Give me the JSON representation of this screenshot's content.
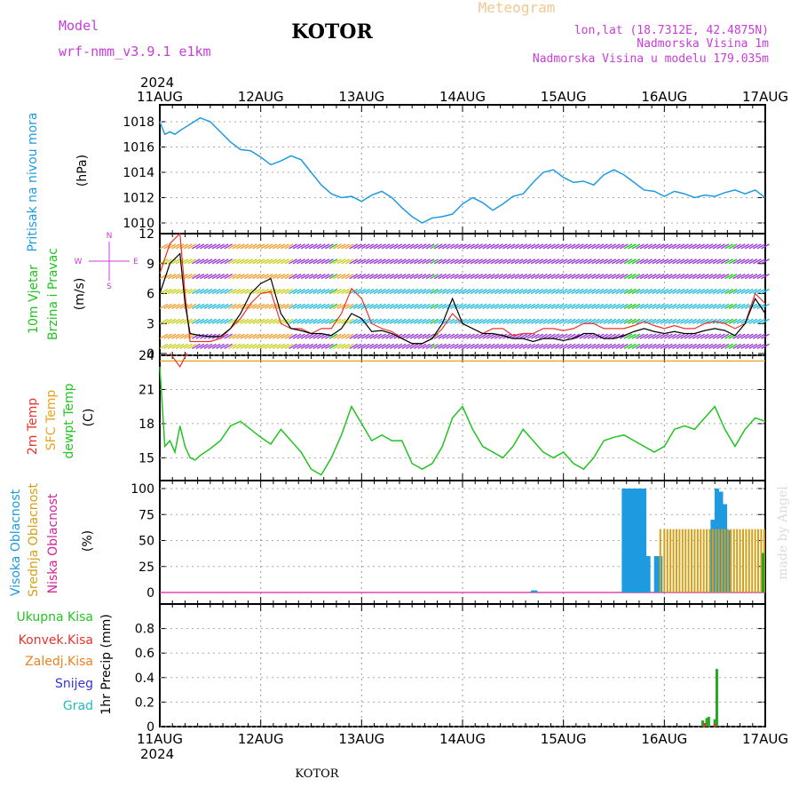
{
  "header": {
    "model_label": "Model",
    "model_name": "wrf-nmm_v3.9.1  e1km",
    "station": "KOTOR",
    "meteogram_label": "Meteogram",
    "lonlat": "lon,lat (18.7312E, 42.4875N)",
    "altitude": "Nadmorska Visina 1m",
    "model_altitude": "Nadmorska Visina u modelu 179.035m"
  },
  "footer": {
    "station": "KOTOR",
    "credit": "made by Angel"
  },
  "time_axis": {
    "year": "2024",
    "ticks": [
      "11AUG",
      "12AUG",
      "13AUG",
      "14AUG",
      "15AUG",
      "16AUG",
      "17AUG"
    ]
  },
  "colors": {
    "pressure": "#1e9be0",
    "wind_speed": "#000000",
    "wind_gust": "#e8332a",
    "temp_2m": "#e8332a",
    "sfc_temp": "#e8a21e",
    "dewpoint": "#22c322",
    "high_cloud": "#1e9be0",
    "mid_cloud": "#d4a017",
    "low_cloud": "#d6249a",
    "total_precip": "#22a822",
    "conv_precip": "#e8332a",
    "frozen_precip": "#f08020",
    "snow": "#3333dd",
    "graupel": "#22bbbb",
    "wind_labels": "#c83cd8"
  },
  "chart_data": [
    {
      "type": "line",
      "title": "Pritisak na nivou mora",
      "ylabel": "(hPa)",
      "x_days": [
        0,
        0.05,
        0.1,
        0.15,
        0.2,
        0.3,
        0.4,
        0.5,
        0.6,
        0.7,
        0.8,
        0.9,
        1.0,
        1.1,
        1.2,
        1.3,
        1.4,
        1.5,
        1.6,
        1.7,
        1.8,
        1.9,
        2.0,
        2.1,
        2.2,
        2.3,
        2.4,
        2.5,
        2.6,
        2.7,
        2.8,
        2.9,
        3.0,
        3.1,
        3.2,
        3.3,
        3.4,
        3.5,
        3.6,
        3.7,
        3.8,
        3.9,
        4.0,
        4.1,
        4.2,
        4.3,
        4.4,
        4.5,
        4.6,
        4.7,
        4.8,
        4.9,
        5.0,
        5.1,
        5.2,
        5.3,
        5.4,
        5.5,
        5.6,
        5.7,
        5.8,
        5.9,
        6.0
      ],
      "values": [
        1018.0,
        1017.0,
        1017.2,
        1017.0,
        1017.3,
        1017.8,
        1018.3,
        1018.0,
        1017.2,
        1016.4,
        1015.8,
        1015.7,
        1015.2,
        1014.6,
        1014.9,
        1015.3,
        1015.0,
        1014.0,
        1013.0,
        1012.3,
        1012.0,
        1012.1,
        1011.7,
        1012.2,
        1012.5,
        1012.0,
        1011.2,
        1010.5,
        1010.0,
        1010.4,
        1010.5,
        1010.7,
        1011.5,
        1012.0,
        1011.6,
        1011.0,
        1011.5,
        1012.1,
        1012.3,
        1013.2,
        1014.0,
        1014.2,
        1013.6,
        1013.2,
        1013.3,
        1013.0,
        1013.8,
        1014.2,
        1013.8,
        1013.2,
        1012.6,
        1012.5,
        1012.1,
        1012.5,
        1012.3,
        1012.0,
        1012.2,
        1012.1,
        1012.4,
        1012.6,
        1012.3,
        1012.6,
        1012.0
      ],
      "ylim": [
        1010,
        1018
      ],
      "yticks": [
        "1010",
        "1012",
        "1014",
        "1016",
        "1018"
      ]
    },
    {
      "type": "line",
      "title": "10m Vjetar",
      "subtitle": "Brzina i Pravac",
      "ylabel": "(m/s)",
      "direction_legend": [
        "N",
        "W",
        "E",
        "S"
      ],
      "x_days": [
        0,
        0.1,
        0.2,
        0.25,
        0.3,
        0.4,
        0.5,
        0.6,
        0.7,
        0.8,
        0.9,
        1.0,
        1.1,
        1.2,
        1.3,
        1.4,
        1.5,
        1.6,
        1.7,
        1.8,
        1.9,
        2.0,
        2.1,
        2.2,
        2.3,
        2.4,
        2.5,
        2.6,
        2.7,
        2.8,
        2.9,
        3.0,
        3.1,
        3.2,
        3.3,
        3.4,
        3.5,
        3.6,
        3.7,
        3.8,
        3.9,
        4.0,
        4.1,
        4.2,
        4.3,
        4.4,
        4.5,
        4.6,
        4.7,
        4.8,
        4.9,
        5.0,
        5.1,
        5.2,
        5.3,
        5.4,
        5.5,
        5.6,
        5.7,
        5.8,
        5.9,
        6.0
      ],
      "series": [
        {
          "name": "speed",
          "values": [
            6,
            9,
            10,
            5,
            2,
            1.8,
            1.7,
            1.7,
            2.5,
            4,
            6,
            7,
            7.5,
            4,
            2.5,
            2.3,
            2,
            2,
            1.8,
            2.5,
            4,
            3.5,
            2.2,
            2.3,
            2,
            1.5,
            1,
            1,
            1.5,
            3,
            5.5,
            3,
            2.5,
            2,
            2,
            1.8,
            1.5,
            1.5,
            1.2,
            1.5,
            1.5,
            1.3,
            1.5,
            2,
            2,
            1.5,
            1.5,
            1.8,
            2.2,
            2.5,
            2.2,
            2,
            2.2,
            2,
            2,
            2.3,
            2.5,
            2.3,
            1.8,
            3,
            5.5,
            4
          ]
        },
        {
          "name": "gust",
          "values": [
            8,
            11,
            12,
            6,
            1.2,
            1.2,
            1.2,
            1.5,
            2.5,
            3.5,
            5,
            6,
            6.2,
            3,
            2.5,
            2.5,
            2,
            2.5,
            2.5,
            4,
            6.5,
            5.5,
            3,
            2.5,
            2.2,
            1.5,
            1,
            1,
            1.5,
            2.5,
            4,
            3,
            2.5,
            2,
            2.5,
            2.5,
            1.8,
            2,
            2,
            2.5,
            2.5,
            2.3,
            2.5,
            3,
            3,
            2.5,
            2.5,
            2.5,
            2.8,
            3.2,
            2.8,
            2.5,
            2.8,
            2.5,
            2.5,
            3,
            3.2,
            3,
            2.5,
            3,
            6,
            5
          ]
        }
      ],
      "ylim": [
        0,
        12
      ],
      "yticks": [
        "0",
        "3",
        "6",
        "9",
        "12"
      ]
    },
    {
      "type": "line",
      "title": "2m Temp",
      "series_labels": [
        "2m Temp",
        "SFC Temp",
        "dewpt Temp"
      ],
      "ylabel": "(C)",
      "x_days": [
        0,
        0.05,
        0.1,
        0.15,
        0.2,
        0.25,
        0.3,
        0.35,
        0.4,
        0.5,
        0.6,
        0.7,
        0.8,
        0.9,
        1.0,
        1.1,
        1.2,
        1.3,
        1.4,
        1.5,
        1.6,
        1.7,
        1.8,
        1.9,
        2.0,
        2.1,
        2.2,
        2.3,
        2.4,
        2.5,
        2.6,
        2.7,
        2.8,
        2.9,
        3.0,
        3.1,
        3.2,
        3.3,
        3.4,
        3.5,
        3.6,
        3.7,
        3.8,
        3.9,
        4.0,
        4.1,
        4.2,
        4.3,
        4.4,
        4.5,
        4.6,
        4.7,
        4.8,
        4.9,
        5.0,
        5.1,
        5.2,
        5.3,
        5.4,
        5.5,
        5.6,
        5.7,
        5.8,
        5.9,
        6.0
      ],
      "series": [
        {
          "name": "dewpt Temp",
          "values": [
            23,
            16,
            16.5,
            15.5,
            17.8,
            16,
            15,
            14.8,
            15.2,
            15.8,
            16.5,
            17.8,
            18.2,
            17.5,
            16.8,
            16.2,
            17.5,
            16.5,
            15.5,
            14,
            13.5,
            15,
            17,
            19.5,
            18,
            16.5,
            17,
            16.5,
            16.5,
            14.5,
            14,
            14.5,
            16,
            18.5,
            19.5,
            17.5,
            16,
            15.5,
            15,
            16,
            17.5,
            16.5,
            15.5,
            15,
            15.5,
            14.5,
            14,
            15,
            16.5,
            16.8,
            17,
            16.5,
            16,
            15.5,
            16,
            17.5,
            17.8,
            17.5,
            18.5,
            19.5,
            17.5,
            16,
            17.5,
            18.5,
            18.2
          ]
        },
        {
          "name": "SFC Temp",
          "values": [
            23.5,
            23.5
          ]
        }
      ],
      "ylim": [
        13,
        24
      ],
      "yticks": [
        "15",
        "18",
        "21",
        "24"
      ]
    },
    {
      "type": "bar",
      "title": "Visoka Oblacnost",
      "series_labels": [
        "Visoka Oblacnost",
        "Srednja Oblacnost",
        "Niska Oblacnost"
      ],
      "ylabel": "(%)",
      "series": [
        {
          "name": "Visoka Oblacnost",
          "x_days": [
            3.7,
            3.72,
            4.6,
            4.62,
            4.65,
            4.68,
            4.72,
            4.76,
            4.8,
            4.84,
            4.92,
            4.96,
            5.48,
            5.52,
            5.56,
            5.6,
            5.64
          ],
          "values": [
            2,
            2,
            100,
            100,
            100,
            100,
            100,
            100,
            100,
            35,
            35,
            35,
            70,
            100,
            97,
            85,
            60
          ]
        },
        {
          "name": "Srednja Oblacnost",
          "x_days": [
            4.96,
            5.0,
            5.03,
            5.06,
            5.09,
            5.12,
            5.15,
            5.18,
            5.21,
            5.24,
            5.27,
            5.3,
            5.33,
            5.36,
            5.39,
            5.42,
            5.45,
            5.48,
            5.51,
            5.54,
            5.57,
            5.6,
            5.63,
            5.66,
            5.69,
            5.72,
            5.75,
            5.78,
            5.81,
            5.84,
            5.87,
            5.9,
            5.93,
            5.96,
            5.99
          ],
          "values": [
            61,
            61,
            61,
            61,
            61,
            61,
            61,
            61,
            61,
            61,
            61,
            61,
            61,
            61,
            61,
            61,
            61,
            61,
            61,
            61,
            61,
            61,
            61,
            61,
            61,
            61,
            61,
            61,
            61,
            61,
            61,
            61,
            61,
            61,
            61
          ]
        }
      ],
      "ylim": [
        0,
        100
      ],
      "yticks": [
        "0",
        "25",
        "50",
        "75",
        "100"
      ]
    },
    {
      "type": "bar",
      "title": "Ukupna Kisa",
      "series_labels": [
        "Ukupna Kisa",
        "Konvek.Kisa",
        "Zaledj.Kisa",
        "Snijeg",
        "Grad"
      ],
      "ylabel": "1hr Precip (mm)",
      "series": [
        {
          "name": "Ukupna Kisa",
          "x_days": [
            5.38,
            5.42,
            5.44,
            5.5,
            5.52
          ],
          "values": [
            0.05,
            0.07,
            0.08,
            0.06,
            0.47
          ]
        },
        {
          "name": "Konvek.Kisa",
          "x_days": [
            5.4,
            5.5
          ],
          "values": [
            0.03,
            0.02
          ]
        }
      ],
      "ylim": [
        0,
        1.0
      ],
      "yticks": [
        "0",
        "0.2",
        "0.4",
        "0.6",
        "0.8"
      ]
    }
  ]
}
